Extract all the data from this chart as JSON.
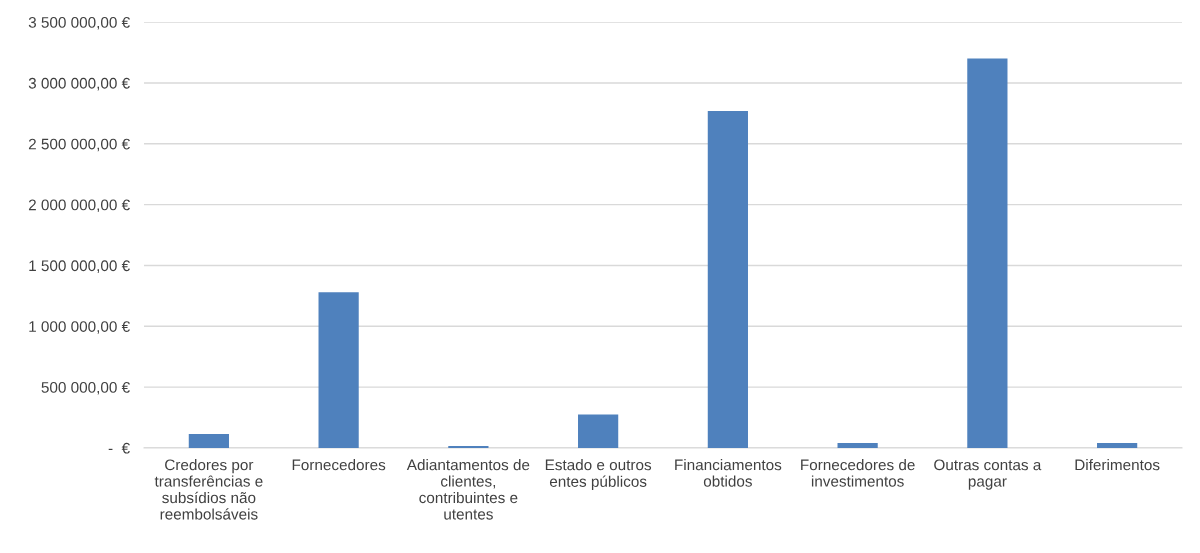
{
  "chart_data": {
    "type": "bar",
    "categories": [
      "Credores por transferências e subsídios não reembolsáveis",
      "Fornecedores",
      "Adiantamentos de clientes, contribuintes e utentes",
      "Estado e outros entes públicos",
      "Financiamentos obtidos",
      "Fornecedores de investimentos",
      "Outras contas a pagar",
      "Diferimentos"
    ],
    "values": [
      115000,
      1280000,
      15000,
      275000,
      2770000,
      40000,
      3200000,
      40000
    ],
    "color": "#4f81bd",
    "ylim": [
      0,
      3500000
    ],
    "yticks": [
      {
        "value": 0,
        "label": "-  €"
      },
      {
        "value": 500000,
        "label": "500 000,00 €"
      },
      {
        "value": 1000000,
        "label": "1 000 000,00 €"
      },
      {
        "value": 1500000,
        "label": "1 500 000,00 €"
      },
      {
        "value": 2000000,
        "label": "2 000 000,00 €"
      },
      {
        "value": 2500000,
        "label": "2 500 000,00 €"
      },
      {
        "value": 3000000,
        "label": "3 000 000,00 €"
      },
      {
        "value": 3500000,
        "label": "3 500 000,00 €"
      }
    ],
    "grid": "y"
  }
}
